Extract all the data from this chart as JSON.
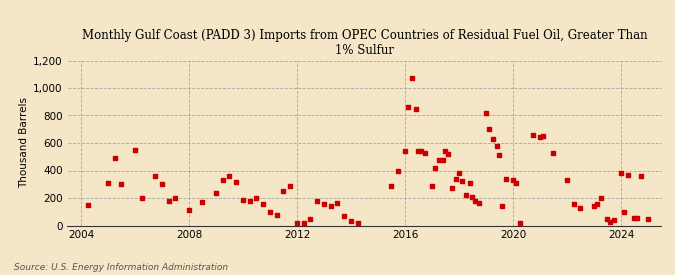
{
  "title": "Monthly Gulf Coast (PADD 3) Imports from OPEC Countries of Residual Fuel Oil, Greater Than\n1% Sulfur",
  "ylabel": "Thousand Barrels",
  "source": "Source: U.S. Energy Information Administration",
  "background_color": "#f5e6c8",
  "plot_bg_color": "#f5e6c8",
  "marker_color": "#cc0000",
  "marker_size": 5,
  "ylim": [
    0,
    1200
  ],
  "yticks": [
    0,
    200,
    400,
    600,
    800,
    1000,
    1200
  ],
  "xlim_start": 2003.5,
  "xlim_end": 2025.5,
  "xticks": [
    2004,
    2008,
    2012,
    2016,
    2020,
    2024
  ],
  "data_points": [
    [
      2004.25,
      150
    ],
    [
      2005.0,
      310
    ],
    [
      2005.25,
      490
    ],
    [
      2005.5,
      300
    ],
    [
      2006.0,
      550
    ],
    [
      2006.25,
      200
    ],
    [
      2006.75,
      360
    ],
    [
      2007.0,
      300
    ],
    [
      2007.25,
      175
    ],
    [
      2007.5,
      200
    ],
    [
      2008.0,
      110
    ],
    [
      2008.5,
      170
    ],
    [
      2009.0,
      240
    ],
    [
      2009.25,
      330
    ],
    [
      2009.5,
      360
    ],
    [
      2009.75,
      320
    ],
    [
      2010.0,
      185
    ],
    [
      2010.25,
      175
    ],
    [
      2010.5,
      200
    ],
    [
      2010.75,
      160
    ],
    [
      2011.0,
      100
    ],
    [
      2011.25,
      80
    ],
    [
      2011.5,
      250
    ],
    [
      2011.75,
      290
    ],
    [
      2012.0,
      20
    ],
    [
      2012.25,
      20
    ],
    [
      2012.5,
      50
    ],
    [
      2012.75,
      175
    ],
    [
      2013.0,
      160
    ],
    [
      2013.25,
      145
    ],
    [
      2013.5,
      165
    ],
    [
      2013.75,
      70
    ],
    [
      2014.0,
      30
    ],
    [
      2014.25,
      20
    ],
    [
      2015.5,
      290
    ],
    [
      2015.75,
      400
    ],
    [
      2016.0,
      540
    ],
    [
      2016.1,
      860
    ],
    [
      2016.25,
      1075
    ],
    [
      2016.4,
      850
    ],
    [
      2016.5,
      545
    ],
    [
      2016.6,
      540
    ],
    [
      2016.75,
      530
    ],
    [
      2017.0,
      290
    ],
    [
      2017.1,
      415
    ],
    [
      2017.25,
      475
    ],
    [
      2017.4,
      480
    ],
    [
      2017.5,
      545
    ],
    [
      2017.6,
      520
    ],
    [
      2017.75,
      270
    ],
    [
      2017.9,
      340
    ],
    [
      2018.0,
      380
    ],
    [
      2018.1,
      325
    ],
    [
      2018.25,
      225
    ],
    [
      2018.4,
      310
    ],
    [
      2018.5,
      210
    ],
    [
      2018.6,
      175
    ],
    [
      2018.75,
      165
    ],
    [
      2019.0,
      820
    ],
    [
      2019.1,
      700
    ],
    [
      2019.25,
      630
    ],
    [
      2019.4,
      580
    ],
    [
      2019.5,
      510
    ],
    [
      2019.6,
      145
    ],
    [
      2019.75,
      340
    ],
    [
      2020.0,
      330
    ],
    [
      2020.1,
      310
    ],
    [
      2020.25,
      20
    ],
    [
      2020.75,
      655
    ],
    [
      2021.0,
      645
    ],
    [
      2021.1,
      650
    ],
    [
      2021.5,
      530
    ],
    [
      2022.0,
      330
    ],
    [
      2022.25,
      155
    ],
    [
      2022.5,
      125
    ],
    [
      2023.0,
      140
    ],
    [
      2023.1,
      155
    ],
    [
      2023.25,
      200
    ],
    [
      2023.5,
      50
    ],
    [
      2023.6,
      25
    ],
    [
      2023.75,
      40
    ],
    [
      2024.0,
      385
    ],
    [
      2024.1,
      100
    ],
    [
      2024.25,
      365
    ],
    [
      2024.5,
      55
    ],
    [
      2024.6,
      55
    ],
    [
      2024.75,
      360
    ],
    [
      2025.0,
      50
    ]
  ]
}
